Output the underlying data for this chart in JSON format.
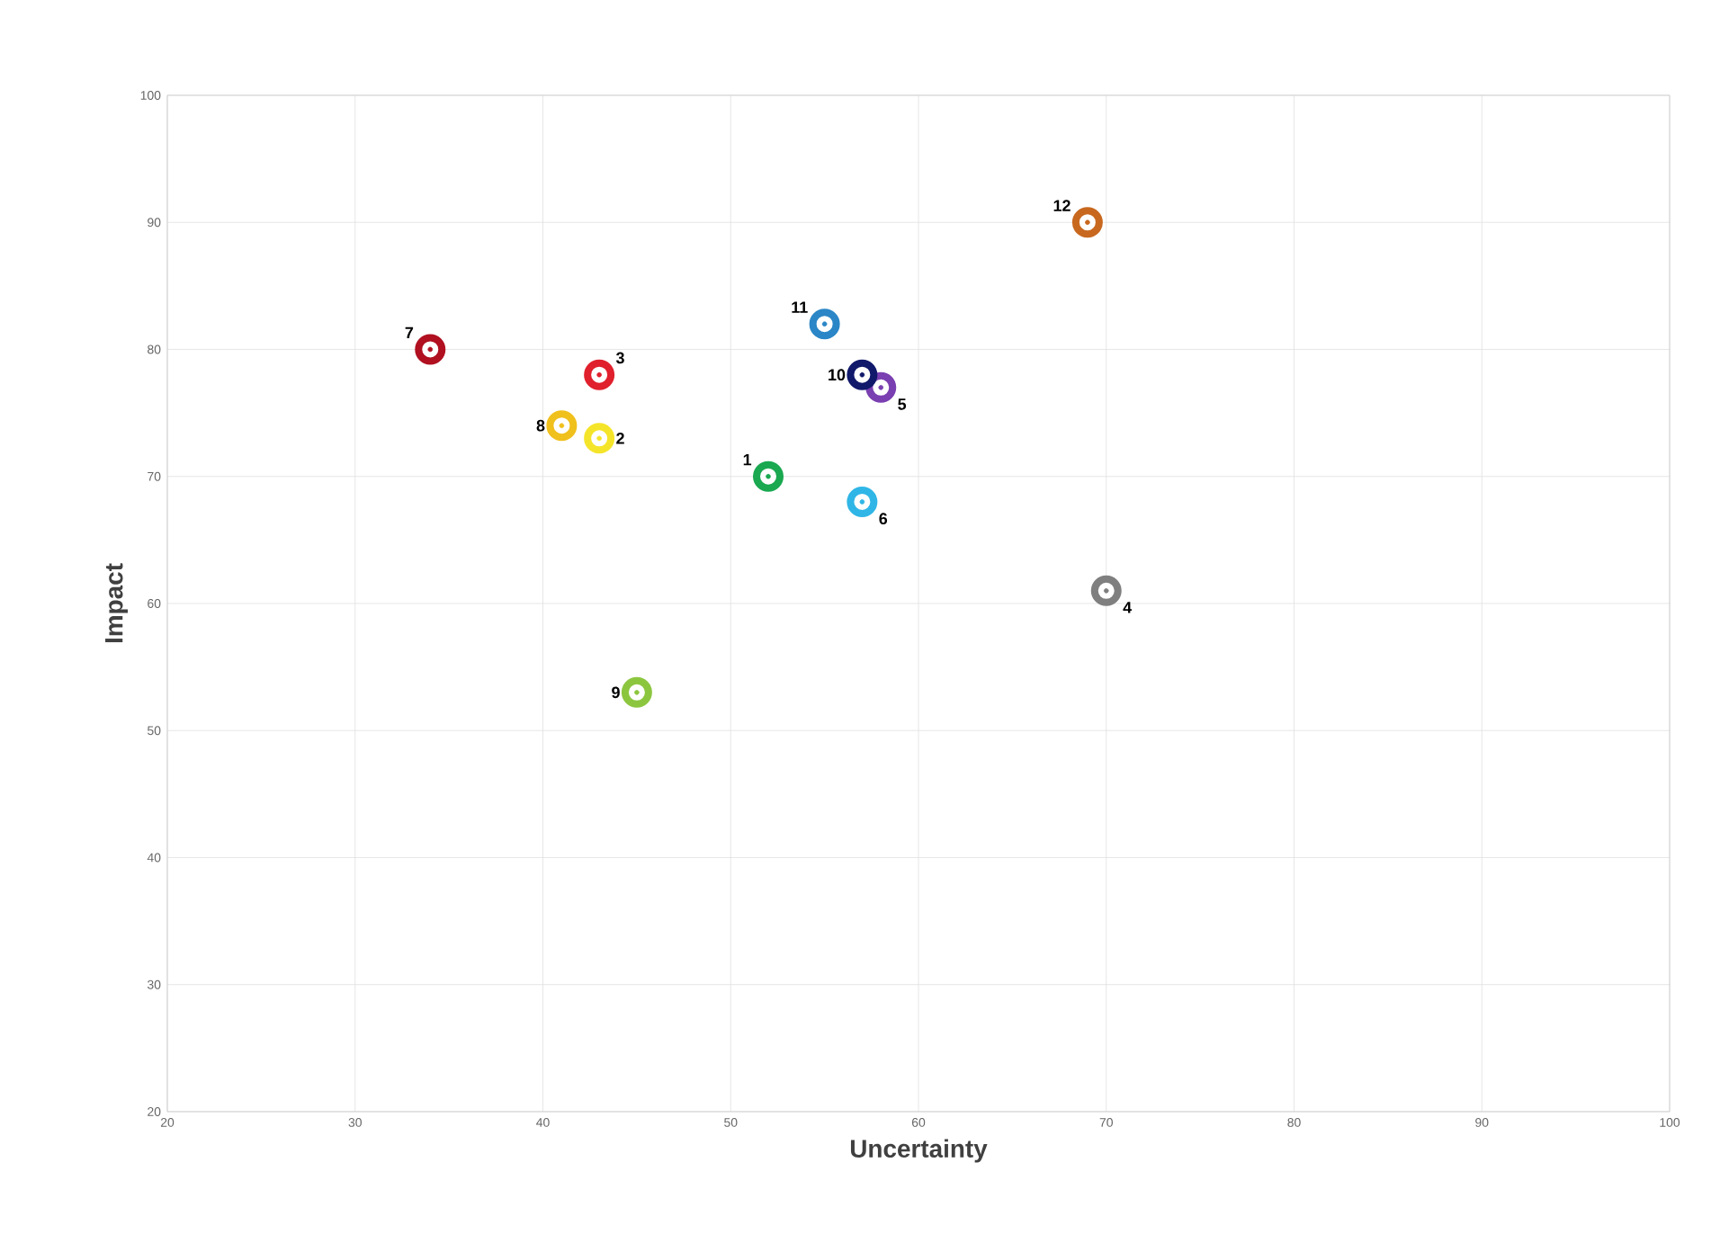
{
  "chart_data": {
    "type": "scatter",
    "xlabel": "Uncertainty",
    "ylabel": "Impact",
    "xlim": [
      20,
      100
    ],
    "xticks": [
      20,
      30,
      40,
      50,
      60,
      70,
      80,
      90,
      100
    ],
    "ylim": [
      20,
      100
    ],
    "yticks": [
      20,
      30,
      40,
      50,
      60,
      70,
      80,
      90,
      100
    ],
    "grid": true,
    "marker": "circle",
    "series": [
      {
        "name": "1",
        "color": "#1aa850",
        "x": [
          52
        ],
        "values": [
          70
        ]
      },
      {
        "name": "2",
        "color": "#f5e52a",
        "x": [
          43
        ],
        "values": [
          73
        ]
      },
      {
        "name": "3",
        "color": "#e0202c",
        "x": [
          43
        ],
        "values": [
          78
        ]
      },
      {
        "name": "4",
        "color": "#7f7f7f",
        "x": [
          70
        ],
        "values": [
          61
        ]
      },
      {
        "name": "5",
        "color": "#7a3fb0",
        "x": [
          58
        ],
        "values": [
          77
        ]
      },
      {
        "name": "6",
        "color": "#2fb6e6",
        "x": [
          57
        ],
        "values": [
          68
        ]
      },
      {
        "name": "7",
        "color": "#b01020",
        "x": [
          34
        ],
        "values": [
          80
        ]
      },
      {
        "name": "8",
        "color": "#f0c01c",
        "x": [
          41
        ],
        "values": [
          74
        ]
      },
      {
        "name": "9",
        "color": "#8cc63f",
        "x": [
          45
        ],
        "values": [
          53
        ]
      },
      {
        "name": "10",
        "color": "#10196a",
        "x": [
          57
        ],
        "values": [
          78
        ]
      },
      {
        "name": "11",
        "color": "#2a86c6",
        "x": [
          55
        ],
        "values": [
          82
        ]
      },
      {
        "name": "12",
        "color": "#c8681e",
        "x": [
          69
        ],
        "values": [
          90
        ]
      }
    ]
  }
}
